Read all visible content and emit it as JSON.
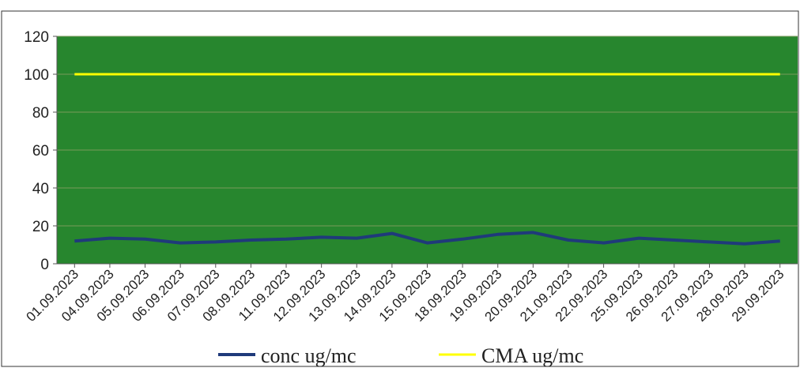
{
  "chart_data": {
    "type": "line",
    "categories": [
      "01.09.2023",
      "04.09.2023",
      "05.09.2023",
      "06.09.2023",
      "07.09.2023",
      "08.09.2023",
      "11.09.2023",
      "12.09.2023",
      "13.09.2023",
      "14.09.2023",
      "15.09.2023",
      "18.09.2023",
      "19.09.2023",
      "20.09.2023",
      "21.09.2023",
      "22.09.2023",
      "25.09.2023",
      "26.09.2023",
      "27.09.2023",
      "28.09.2023",
      "29.09.2023"
    ],
    "series": [
      {
        "name": "conc ug/mc",
        "color": "#1f3a7a",
        "values": [
          12,
          13.5,
          13,
          11,
          11.5,
          12.5,
          13,
          14,
          13.5,
          16,
          11,
          13,
          15.5,
          16.5,
          12.5,
          11,
          13.5,
          12.5,
          11.5,
          10.5,
          12
        ]
      },
      {
        "name": "CMA ug/mc",
        "color": "#ffff00",
        "values": [
          100,
          100,
          100,
          100,
          100,
          100,
          100,
          100,
          100,
          100,
          100,
          100,
          100,
          100,
          100,
          100,
          100,
          100,
          100,
          100,
          100
        ]
      }
    ],
    "y_ticks": [
      0,
      20,
      40,
      60,
      80,
      100,
      120
    ],
    "ylim": [
      0,
      120
    ],
    "grid": true,
    "legend_position": "bottom",
    "colors": {
      "plot_background": "#27862e",
      "gridline": "#7a9a5a",
      "axis": "#555555"
    }
  }
}
